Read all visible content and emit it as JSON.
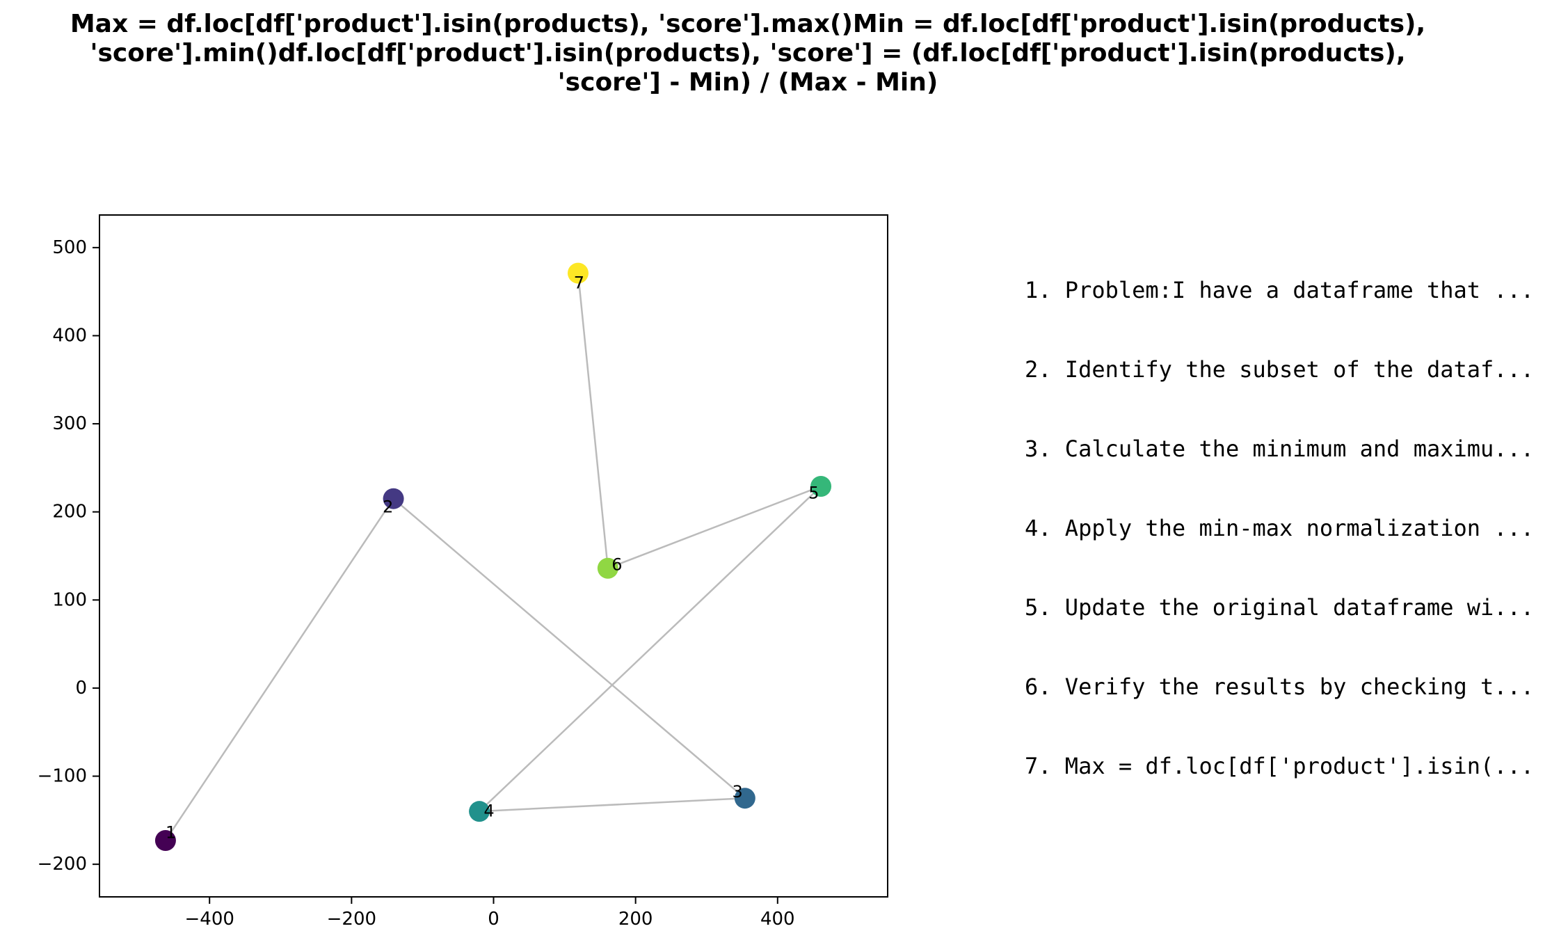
{
  "chart_data": {
    "type": "scatter",
    "title_lines": [
      "Max = df.loc[df['product'].isin(products), 'score'].max()Min = df.loc[df['product'].isin(products),",
      "'score'].min()df.loc[df['product'].isin(products), 'score'] = (df.loc[df['product'].isin(products),",
      "'score'] - Min) / (Max - Min)"
    ],
    "xlabel": "",
    "ylabel": "",
    "xlim": [
      -555,
      555
    ],
    "ylim": [
      -237,
      537
    ],
    "xticks": [
      -400,
      -200,
      0,
      200,
      400
    ],
    "xtick_labels": [
      "−400",
      "−200",
      "0",
      "200",
      "400"
    ],
    "yticks": [
      -200,
      -100,
      0,
      100,
      200,
      300,
      400,
      500
    ],
    "ytick_labels": [
      "−200",
      "−100",
      "0",
      "100",
      "200",
      "300",
      "400",
      "500"
    ],
    "grid": false,
    "connect_in_order": true,
    "line_color": "#bbbbbb",
    "points": [
      {
        "label": "1",
        "x": -462,
        "y": -173,
        "color": "#440154"
      },
      {
        "label": "2",
        "x": -141,
        "y": 215,
        "color": "#443983"
      },
      {
        "label": "3",
        "x": 354,
        "y": -125,
        "color": "#31688e"
      },
      {
        "label": "4",
        "x": -20,
        "y": -140,
        "color": "#21918c"
      },
      {
        "label": "5",
        "x": 461,
        "y": 229,
        "color": "#35b779"
      },
      {
        "label": "6",
        "x": 161,
        "y": 136,
        "color": "#90d743"
      },
      {
        "label": "7",
        "x": 119,
        "y": 471,
        "color": "#fde725"
      }
    ],
    "steps": [
      "1. Problem:I have a dataframe that ...",
      "2. Identify the subset of the dataf...",
      "3. Calculate the minimum and maximu...",
      "4. Apply the min-max normalization ...",
      "5. Update the original dataframe wi...",
      "6. Verify the results by checking t...",
      "7. Max = df.loc[df['product'].isin(..."
    ]
  }
}
